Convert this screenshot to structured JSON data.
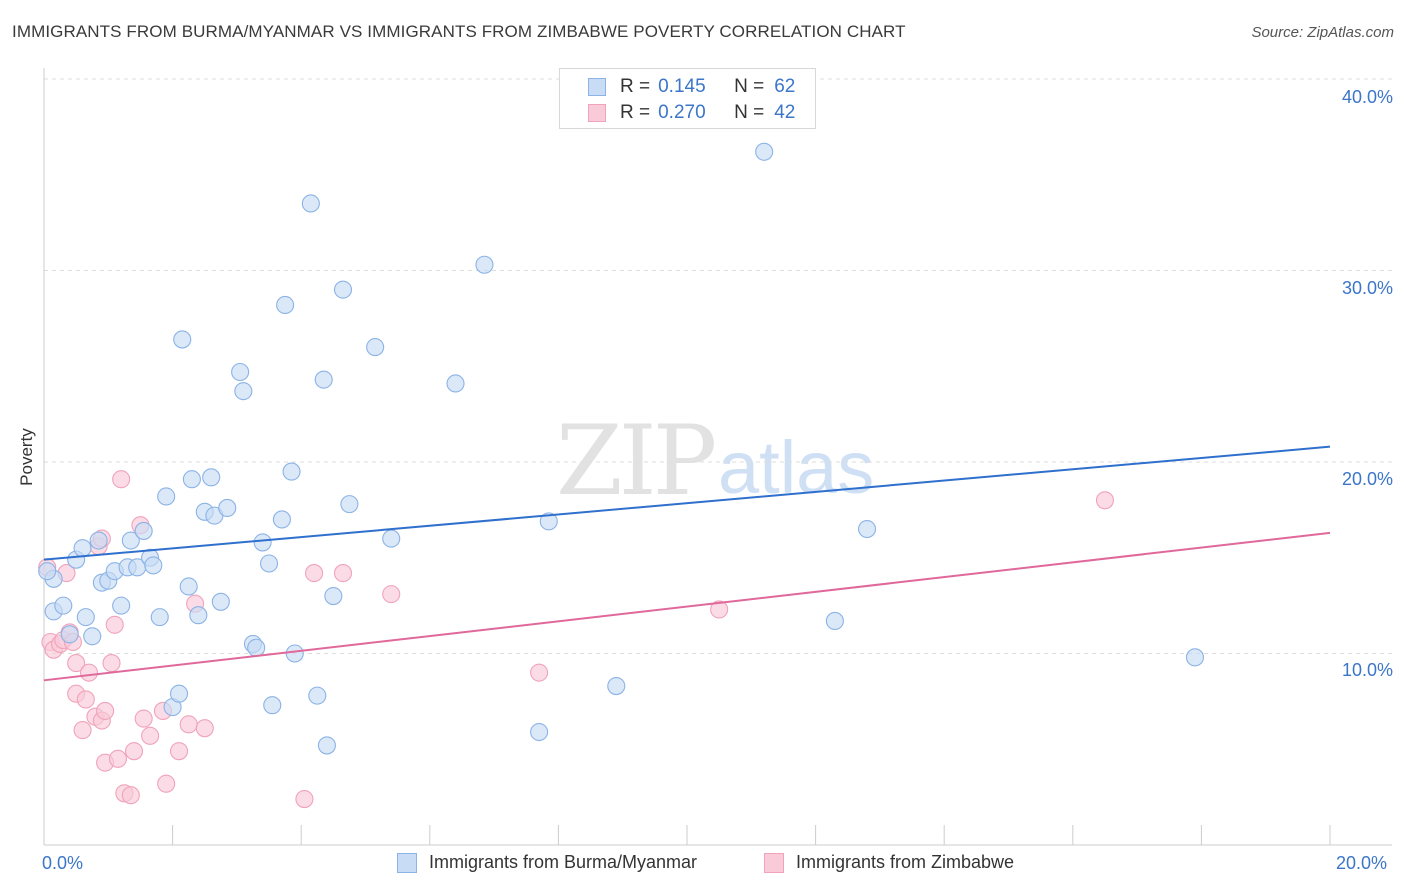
{
  "title": "IMMIGRANTS FROM BURMA/MYANMAR VS IMMIGRANTS FROM ZIMBABWE POVERTY CORRELATION CHART",
  "source": "Source: ZipAtlas.com",
  "watermark": {
    "zip": "ZIP",
    "atlas": "atlas"
  },
  "legend": {
    "rows": [
      {
        "r_label": "R =",
        "r_value": "0.145",
        "n_label": "N =",
        "n_value": "62"
      },
      {
        "r_label": "R =",
        "r_value": "0.270",
        "n_label": "N =",
        "n_value": "42"
      }
    ]
  },
  "colors": {
    "blue_fill": "#c8dcf5",
    "blue_stroke": "#8bb3e6",
    "blue_line": "#2f6fce",
    "pink_fill": "#f9cad8",
    "pink_stroke": "#f0a3ba",
    "pink_line": "#e0689a",
    "tick_label": "#3b76c9",
    "grid": "#dddddd"
  },
  "chart_data": {
    "type": "scatter",
    "title": "IMMIGRANTS FROM BURMA/MYANMAR VS IMMIGRANTS FROM ZIMBABWE POVERTY CORRELATION CHART",
    "xlabel": "",
    "ylabel": "Poverty",
    "xlim": [
      0,
      20
    ],
    "ylim": [
      0,
      40
    ],
    "x_ticks": [
      "0.0%",
      "20.0%"
    ],
    "y_ticks": [
      "10.0%",
      "20.0%",
      "30.0%",
      "40.0%"
    ],
    "grid": "horizontal dashed",
    "legend_position": "top-center",
    "series": [
      {
        "name": "Immigrants from Burma/Myanmar",
        "color": "#8bb3e6",
        "trend": [
          [
            0,
            14.9
          ],
          [
            20,
            20.8
          ]
        ],
        "points": [
          [
            0.15,
            13.9
          ],
          [
            0.15,
            12.2
          ],
          [
            0.3,
            12.5
          ],
          [
            0.4,
            11.0
          ],
          [
            0.5,
            14.9
          ],
          [
            0.6,
            15.5
          ],
          [
            0.65,
            11.9
          ],
          [
            0.75,
            10.9
          ],
          [
            0.85,
            15.9
          ],
          [
            0.9,
            13.7
          ],
          [
            1.0,
            13.8
          ],
          [
            1.1,
            14.3
          ],
          [
            1.2,
            12.5
          ],
          [
            1.3,
            14.5
          ],
          [
            1.35,
            15.9
          ],
          [
            1.45,
            14.5
          ],
          [
            1.55,
            16.4
          ],
          [
            1.65,
            15.0
          ],
          [
            1.7,
            14.6
          ],
          [
            1.8,
            11.9
          ],
          [
            1.9,
            18.2
          ],
          [
            2.0,
            7.2
          ],
          [
            2.1,
            7.9
          ],
          [
            2.15,
            26.4
          ],
          [
            2.25,
            13.5
          ],
          [
            2.3,
            19.1
          ],
          [
            2.4,
            12.0
          ],
          [
            2.5,
            17.4
          ],
          [
            2.6,
            19.2
          ],
          [
            2.65,
            17.2
          ],
          [
            2.75,
            12.7
          ],
          [
            2.85,
            17.6
          ],
          [
            3.05,
            24.7
          ],
          [
            3.1,
            23.7
          ],
          [
            3.25,
            10.5
          ],
          [
            3.3,
            10.3
          ],
          [
            3.4,
            15.8
          ],
          [
            3.5,
            14.7
          ],
          [
            3.55,
            7.3
          ],
          [
            3.7,
            17.0
          ],
          [
            3.75,
            28.2
          ],
          [
            3.85,
            19.5
          ],
          [
            3.9,
            10.0
          ],
          [
            4.15,
            33.5
          ],
          [
            4.25,
            7.8
          ],
          [
            4.35,
            24.3
          ],
          [
            4.4,
            5.2
          ],
          [
            4.5,
            13.0
          ],
          [
            4.65,
            29.0
          ],
          [
            4.75,
            17.8
          ],
          [
            5.15,
            26.0
          ],
          [
            5.4,
            16.0
          ],
          [
            6.4,
            24.1
          ],
          [
            6.85,
            30.3
          ],
          [
            7.7,
            5.9
          ],
          [
            7.85,
            16.9
          ],
          [
            8.9,
            8.3
          ],
          [
            11.2,
            36.2
          ],
          [
            12.3,
            11.7
          ],
          [
            12.8,
            16.5
          ],
          [
            17.9,
            9.8
          ],
          [
            0.05,
            14.3
          ]
        ]
      },
      {
        "name": "Immigrants from Zimbabwe",
        "color": "#f0a3ba",
        "trend": [
          [
            0,
            8.6
          ],
          [
            20,
            16.3
          ]
        ],
        "points": [
          [
            0.05,
            14.5
          ],
          [
            0.1,
            10.6
          ],
          [
            0.15,
            10.2
          ],
          [
            0.25,
            10.5
          ],
          [
            0.3,
            10.7
          ],
          [
            0.35,
            14.2
          ],
          [
            0.4,
            11.1
          ],
          [
            0.45,
            10.6
          ],
          [
            0.5,
            7.9
          ],
          [
            0.5,
            9.5
          ],
          [
            0.6,
            6.0
          ],
          [
            0.65,
            7.6
          ],
          [
            0.7,
            9.0
          ],
          [
            0.8,
            6.7
          ],
          [
            0.85,
            15.6
          ],
          [
            0.9,
            16.0
          ],
          [
            0.9,
            6.5
          ],
          [
            0.95,
            7.0
          ],
          [
            0.95,
            4.3
          ],
          [
            1.05,
            9.5
          ],
          [
            1.1,
            11.5
          ],
          [
            1.15,
            4.5
          ],
          [
            1.2,
            19.1
          ],
          [
            1.25,
            2.7
          ],
          [
            1.35,
            2.6
          ],
          [
            1.4,
            4.9
          ],
          [
            1.5,
            16.7
          ],
          [
            1.55,
            6.6
          ],
          [
            1.65,
            5.7
          ],
          [
            1.85,
            7.0
          ],
          [
            1.9,
            3.2
          ],
          [
            2.1,
            4.9
          ],
          [
            2.25,
            6.3
          ],
          [
            2.35,
            12.6
          ],
          [
            2.5,
            6.1
          ],
          [
            4.05,
            2.4
          ],
          [
            4.2,
            14.2
          ],
          [
            4.65,
            14.2
          ],
          [
            5.4,
            13.1
          ],
          [
            7.7,
            9.0
          ],
          [
            10.5,
            12.3
          ],
          [
            16.5,
            18.0
          ]
        ]
      }
    ]
  }
}
